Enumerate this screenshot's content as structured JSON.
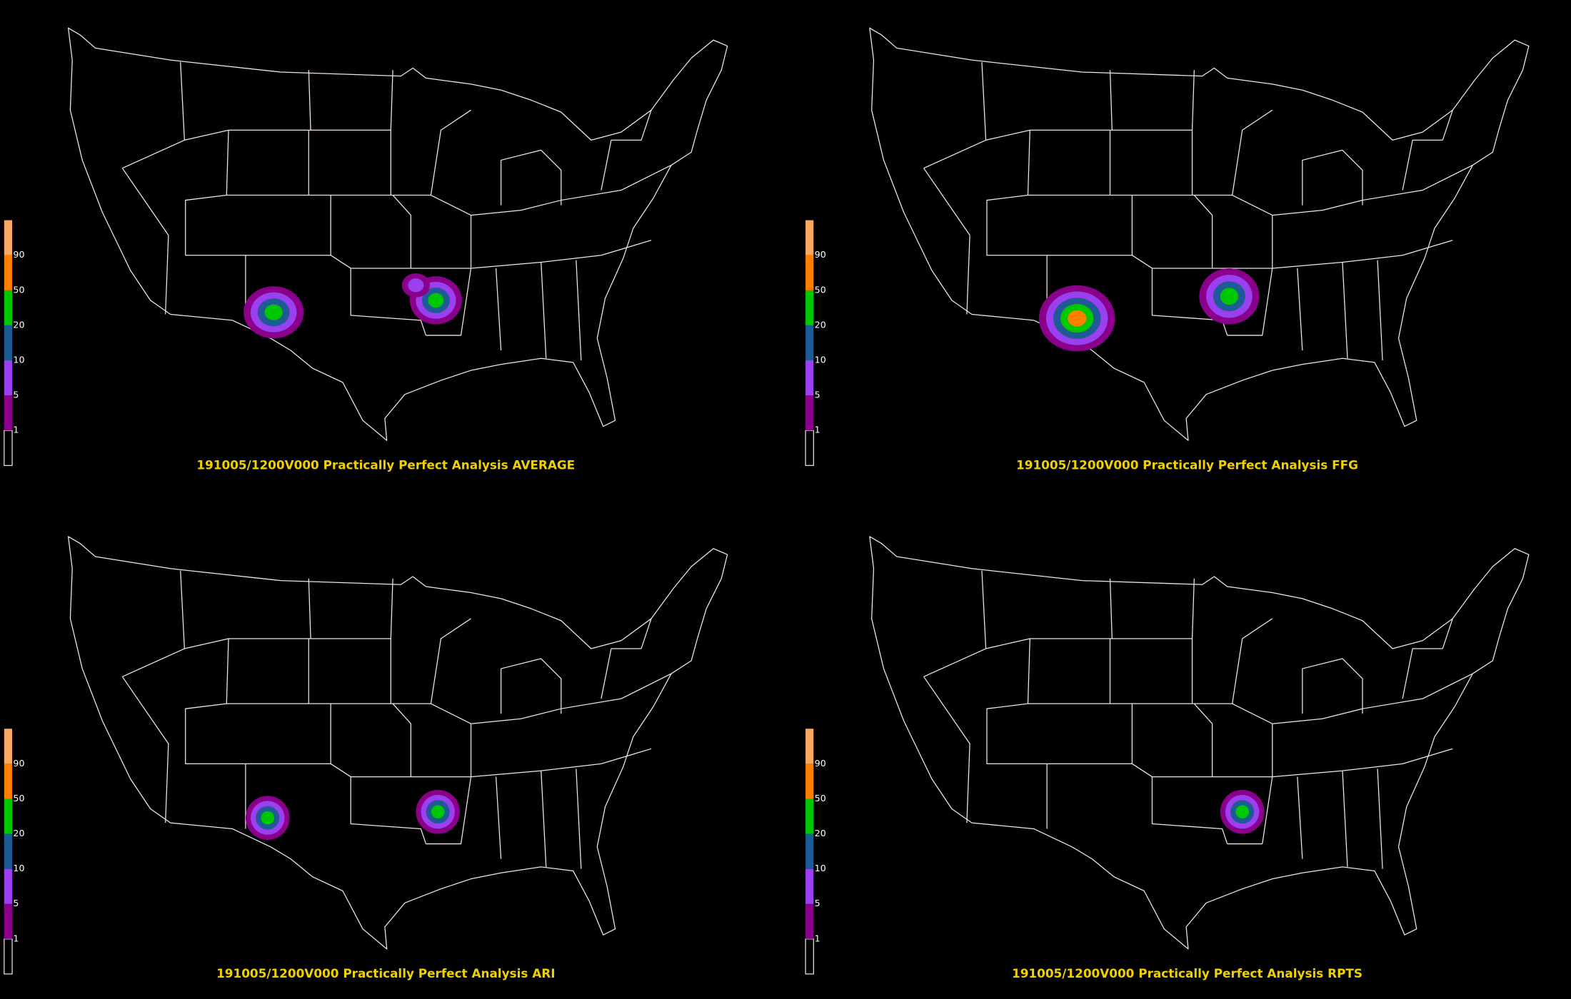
{
  "panels": [
    {
      "title": "191005/1200V000 Practically Perfect Analysis AVERAGE"
    },
    {
      "title": "191005/1200V000 Practically Perfect Analysis FFG"
    },
    {
      "title": "191005/1200V000 Practically Perfect Analysis ARI"
    },
    {
      "title": "191005/1200V000 Practically Perfect Analysis RPTS"
    }
  ],
  "legend": {
    "labels": [
      "1",
      "5",
      "10",
      "20",
      "50",
      "90"
    ],
    "colors": [
      "#000000",
      "#8b008b",
      "#9b40f0",
      "#1e5a96",
      "#00c800",
      "#ff7f00",
      "#f8a860"
    ]
  }
}
